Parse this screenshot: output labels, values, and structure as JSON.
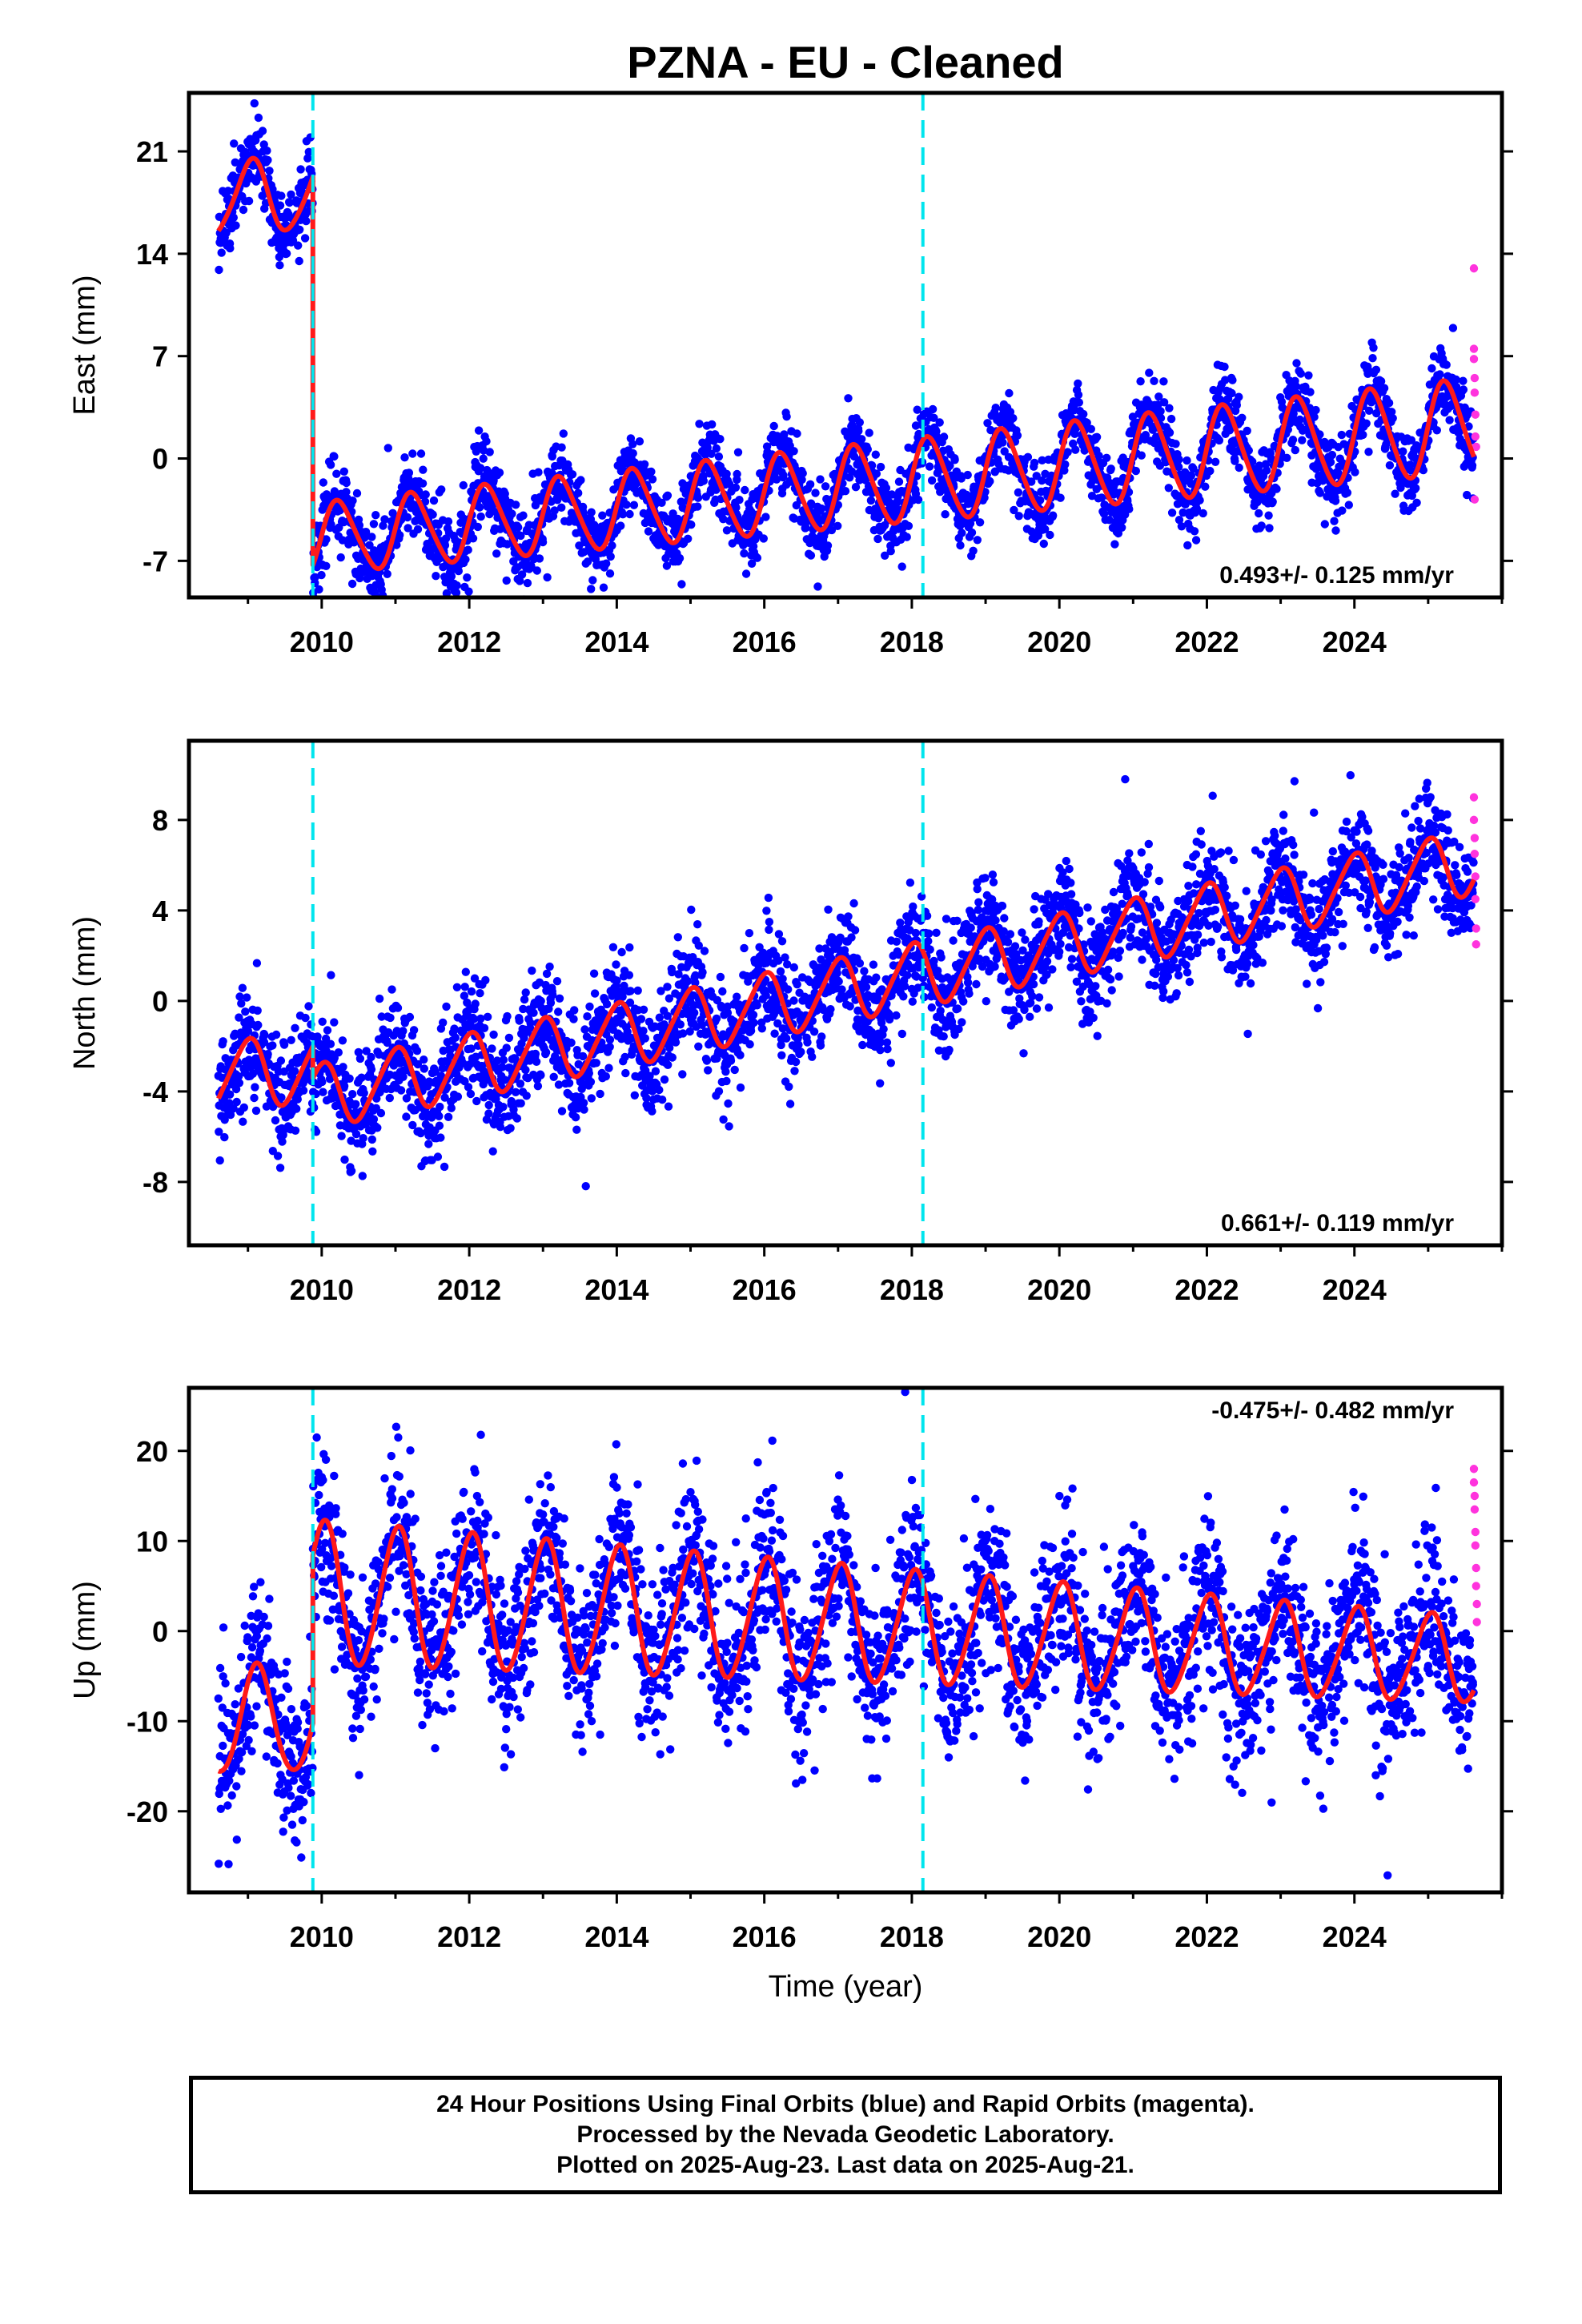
{
  "page": {
    "title": "PZNA  - EU - Cleaned",
    "caption": [
      "24 Hour Positions Using Final Orbits (blue) and Rapid Orbits (magenta).",
      "Processed by the Nevada Geodetic Laboratory.",
      "Plotted on 2025-Aug-23. Last data on 2025-Aug-21."
    ]
  },
  "colors": {
    "final_orbits": "#0000ff",
    "rapid_orbits": "#ff33dd",
    "model": "#ff1a1a",
    "event_lines": "#00e5ee",
    "frame": "#000000"
  },
  "chart_data": [
    {
      "type": "scatter",
      "component": "East",
      "ylabel": "East (mm)",
      "xlabel": "",
      "xlim": [
        2008.2,
        2026.0
      ],
      "ylim": [
        -9.5,
        25
      ],
      "xticks": [
        2010,
        2012,
        2014,
        2016,
        2018,
        2020,
        2022,
        2024
      ],
      "yticks": [
        -7,
        0,
        7,
        14,
        21
      ],
      "rate_label": "0.493+/- 0.125 mm/yr",
      "event_lines_x": [
        2009.88,
        2018.15
      ],
      "model": {
        "segments": [
          {
            "start": 2008.6,
            "end": 2009.88,
            "offset": 17.8,
            "trend": 0.493,
            "t0": 2009.0,
            "annual_amp": 2.5,
            "annual_phase": 1.3,
            "semi_amp": 0.3
          },
          {
            "start": 2009.88,
            "end": 2025.62,
            "offset": -3.5,
            "trend": 0.493,
            "t0": 2014.0,
            "annual_amp": 2.6,
            "annual_phase": 0.1,
            "semi_amp": 0.3
          }
        ],
        "annual_amp_growth": 0.02,
        "noise_sd": 1.3,
        "points_per_year": 190
      },
      "rapid_points": [
        {
          "x": 2025.62,
          "y": 13.0
        },
        {
          "x": 2025.62,
          "y": 7.5
        },
        {
          "x": 2025.62,
          "y": 6.8
        },
        {
          "x": 2025.63,
          "y": 5.5
        },
        {
          "x": 2025.63,
          "y": 4.5
        },
        {
          "x": 2025.64,
          "y": 3.0
        },
        {
          "x": 2025.64,
          "y": 1.5
        },
        {
          "x": 2025.65,
          "y": 0.8
        },
        {
          "x": 2025.63,
          "y": -2.8
        }
      ]
    },
    {
      "type": "scatter",
      "component": "North",
      "ylabel": "North (mm)",
      "xlabel": "",
      "xlim": [
        2008.2,
        2026.0
      ],
      "ylim": [
        -10.8,
        11.5
      ],
      "xticks": [
        2010,
        2012,
        2014,
        2016,
        2018,
        2020,
        2022,
        2024
      ],
      "yticks": [
        -8,
        -4,
        0,
        4,
        8
      ],
      "rate_label": "0.661+/- 0.119 mm/yr",
      "event_lines_x": [
        2009.88,
        2018.15
      ],
      "model": {
        "segments": [
          {
            "start": 2008.6,
            "end": 2009.88,
            "offset": -3.2,
            "trend": 0.3,
            "t0": 2009.0,
            "annual_amp": 1.5,
            "annual_phase": 1.6,
            "semi_amp": 0.2
          },
          {
            "start": 2009.88,
            "end": 2025.62,
            "offset": -1.2,
            "trend": 0.661,
            "t0": 2014.5,
            "annual_amp": 1.4,
            "annual_phase": 1.6,
            "semi_amp": 0.2
          }
        ],
        "annual_amp_growth": 0.0,
        "noise_sd": 1.2,
        "points_per_year": 190
      },
      "rapid_points": [
        {
          "x": 2025.62,
          "y": 9.0
        },
        {
          "x": 2025.62,
          "y": 8.0
        },
        {
          "x": 2025.63,
          "y": 7.2
        },
        {
          "x": 2025.63,
          "y": 6.5
        },
        {
          "x": 2025.64,
          "y": 5.5
        },
        {
          "x": 2025.64,
          "y": 4.5
        },
        {
          "x": 2025.65,
          "y": 3.2
        },
        {
          "x": 2025.65,
          "y": 2.5
        }
      ]
    },
    {
      "type": "scatter",
      "component": "Up",
      "ylabel": "Up (mm)",
      "xlabel": "Time (year)",
      "xlim": [
        2008.2,
        2026.0
      ],
      "ylim": [
        -29,
        27
      ],
      "xticks": [
        2010,
        2012,
        2014,
        2016,
        2018,
        2020,
        2022,
        2024
      ],
      "yticks": [
        -20,
        -10,
        0,
        10,
        20
      ],
      "rate_label": "-0.475+/- 0.482 mm/yr",
      "event_lines_x": [
        2009.88,
        2018.15
      ],
      "model": {
        "segments": [
          {
            "start": 2008.6,
            "end": 2009.88,
            "offset": -10.0,
            "trend": 0.0,
            "t0": 2009.0,
            "annual_amp": 6.0,
            "annual_phase": 0.8,
            "semi_amp": 0.5
          },
          {
            "start": 2009.88,
            "end": 2025.62,
            "offset": 2.0,
            "trend": -0.475,
            "t0": 2014.5,
            "annual_amp": 7.0,
            "annual_phase": 1.4,
            "semi_amp": 0.6
          }
        ],
        "annual_amp_growth": -0.03,
        "noise_sd": 4.5,
        "points_per_year": 190
      },
      "rapid_points": [
        {
          "x": 2025.62,
          "y": 18.0
        },
        {
          "x": 2025.62,
          "y": 16.5
        },
        {
          "x": 2025.63,
          "y": 15.0
        },
        {
          "x": 2025.63,
          "y": 13.5
        },
        {
          "x": 2025.64,
          "y": 11.0
        },
        {
          "x": 2025.64,
          "y": 9.5
        },
        {
          "x": 2025.65,
          "y": 7.0
        },
        {
          "x": 2025.65,
          "y": 5.0
        },
        {
          "x": 2025.66,
          "y": 3.0
        },
        {
          "x": 2025.66,
          "y": 1.0
        }
      ]
    }
  ]
}
